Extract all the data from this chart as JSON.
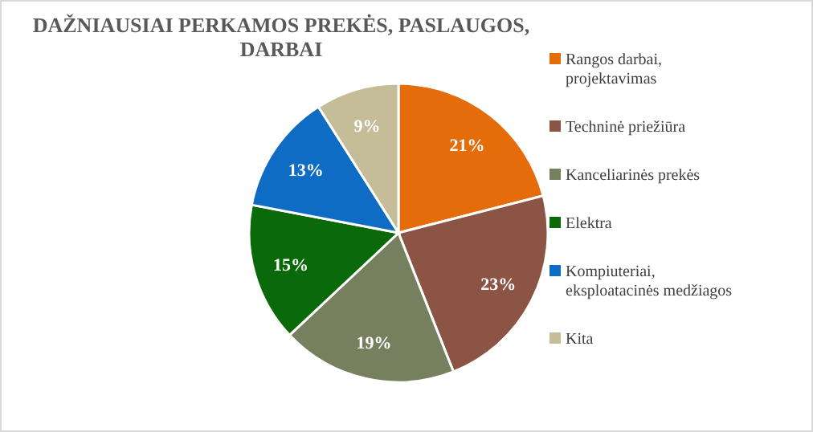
{
  "chart_data": {
    "type": "pie",
    "title": "DAŽNIAUSIAI PERKAMOS PREKĖS, PASLAUGOS, DARBAI",
    "categories": [
      "Rangos darbai, projektavimas",
      "Techninė priežiūra",
      "Kanceliarinės prekės",
      "Elektra",
      "Kompiuteriai, eksploatacinės medžiagos",
      "Kita"
    ],
    "values": [
      21,
      23,
      19,
      15,
      13,
      9
    ],
    "colors": [
      "#e46c0a",
      "#8b5444",
      "#76805f",
      "#0a6a0a",
      "#0e6cc4",
      "#c4bd97"
    ],
    "value_labels": [
      "21%",
      "23%",
      "19%",
      "15%",
      "13%",
      "9%"
    ],
    "legend": "right"
  }
}
